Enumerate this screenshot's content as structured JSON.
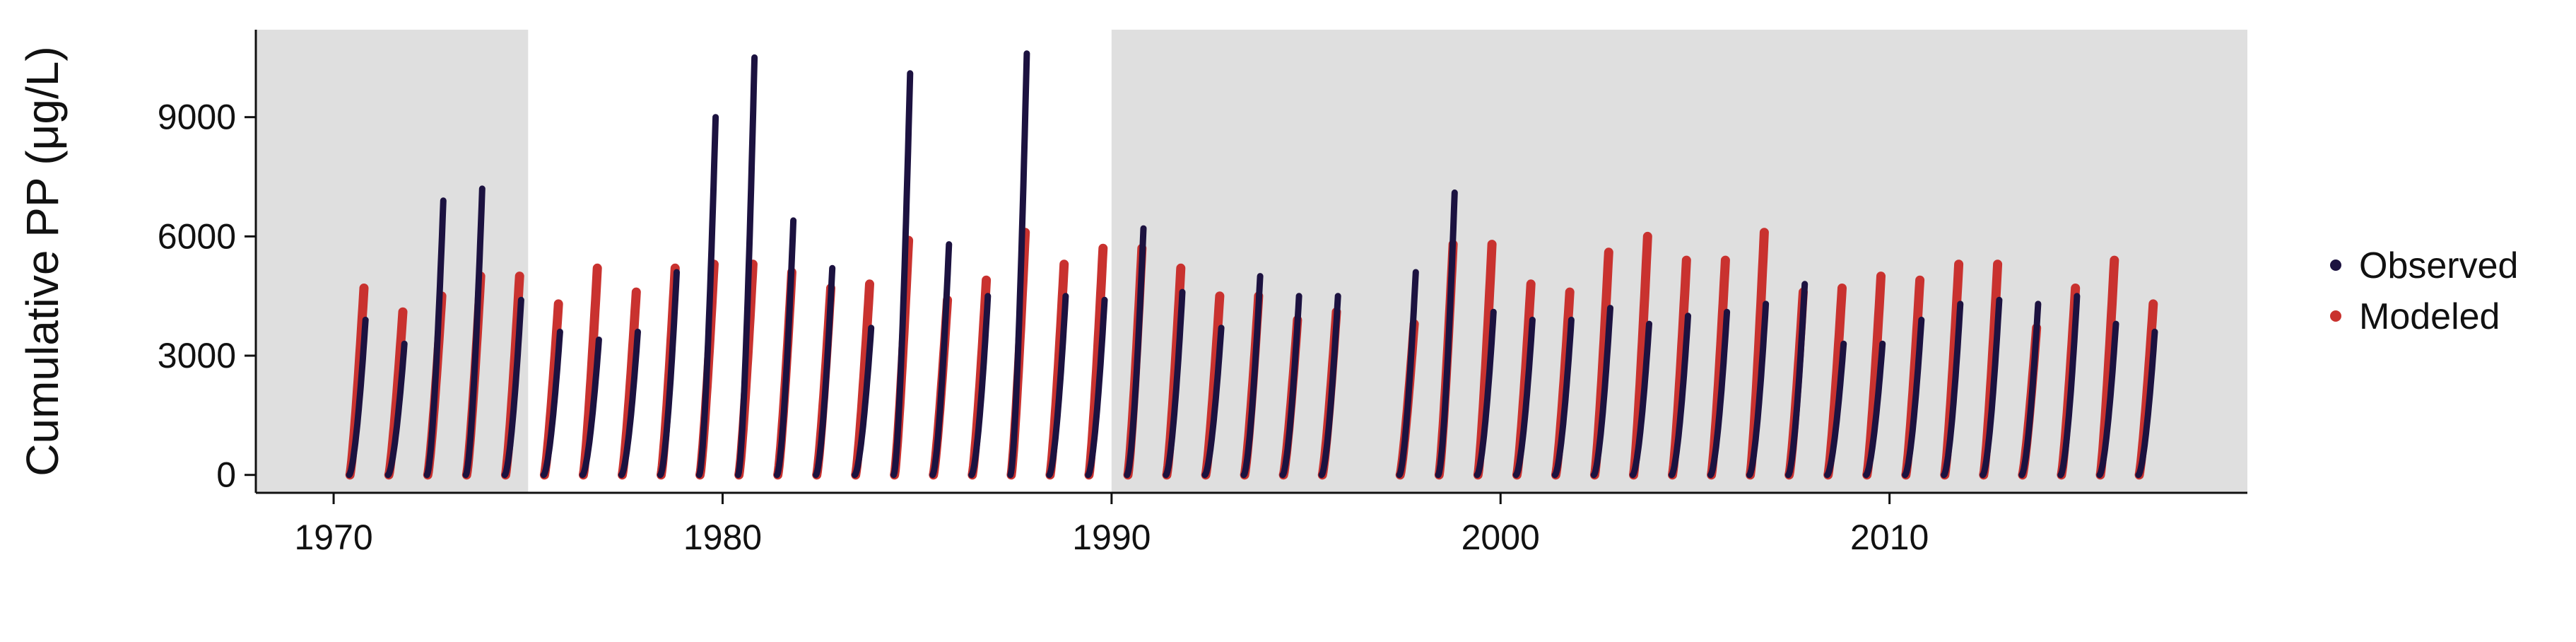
{
  "chart_data": {
    "type": "line",
    "title": "",
    "xlabel": "",
    "ylabel": "Cumulative PP (μg/L)",
    "xlim": [
      1968.0,
      2019.2
    ],
    "ylim": [
      -450,
      11200
    ],
    "x_ticks": [
      1970,
      1980,
      1990,
      2000,
      2010
    ],
    "x_tick_labels": [
      "1970",
      "1980",
      "1990",
      "2000",
      "2010"
    ],
    "y_ticks": [
      0,
      3000,
      6000,
      9000
    ],
    "y_tick_labels": [
      "0",
      "3000",
      "6000",
      "9000"
    ],
    "grid": false,
    "shaded_periods": [
      [
        1968.0,
        1975.0
      ],
      [
        1990.0,
        2019.2
      ]
    ],
    "legend": {
      "position": "right",
      "entries": [
        "Observed",
        "Modeled"
      ]
    },
    "series": [
      {
        "name": "Observed",
        "color": "#1c1240",
        "seasons": [
          [
            1970.4,
            3900
          ],
          [
            1971.4,
            3300
          ],
          [
            1972.4,
            6900
          ],
          [
            1973.4,
            7200
          ],
          [
            1974.4,
            4400
          ],
          [
            1975.4,
            3600
          ],
          [
            1976.4,
            3400
          ],
          [
            1977.4,
            3600
          ],
          [
            1978.4,
            5100
          ],
          [
            1979.4,
            9000
          ],
          [
            1980.4,
            10500
          ],
          [
            1981.4,
            6400
          ],
          [
            1982.4,
            5200
          ],
          [
            1983.4,
            3700
          ],
          [
            1984.4,
            10100
          ],
          [
            1985.4,
            5800
          ],
          [
            1986.4,
            4500
          ],
          [
            1987.4,
            10600
          ],
          [
            1988.4,
            4500
          ],
          [
            1989.4,
            4400
          ],
          [
            1990.4,
            6200
          ],
          [
            1991.4,
            4600
          ],
          [
            1992.4,
            3700
          ],
          [
            1993.4,
            5000
          ],
          [
            1994.4,
            4500
          ],
          [
            1995.4,
            4500
          ],
          [
            1997.4,
            5100
          ],
          [
            1998.4,
            7100
          ],
          [
            1999.4,
            4100
          ],
          [
            2000.4,
            3900
          ],
          [
            2001.4,
            3900
          ],
          [
            2002.4,
            4200
          ],
          [
            2003.4,
            3800
          ],
          [
            2004.4,
            4000
          ],
          [
            2005.4,
            4100
          ],
          [
            2006.4,
            4300
          ],
          [
            2007.4,
            4800
          ],
          [
            2008.4,
            3300
          ],
          [
            2009.4,
            3300
          ],
          [
            2010.4,
            3900
          ],
          [
            2011.4,
            4300
          ],
          [
            2012.4,
            4400
          ],
          [
            2013.4,
            4300
          ],
          [
            2014.4,
            4500
          ],
          [
            2015.4,
            3800
          ],
          [
            2016.4,
            3600
          ]
        ]
      },
      {
        "name": "Modeled",
        "color": "#c9322f",
        "seasons": [
          [
            1970.4,
            4700
          ],
          [
            1971.4,
            4100
          ],
          [
            1972.4,
            4500
          ],
          [
            1973.4,
            5000
          ],
          [
            1974.4,
            5000
          ],
          [
            1975.4,
            4300
          ],
          [
            1976.4,
            5200
          ],
          [
            1977.4,
            4600
          ],
          [
            1978.4,
            5200
          ],
          [
            1979.4,
            5300
          ],
          [
            1980.4,
            5300
          ],
          [
            1981.4,
            5100
          ],
          [
            1982.4,
            4700
          ],
          [
            1983.4,
            4800
          ],
          [
            1984.4,
            5900
          ],
          [
            1985.4,
            4400
          ],
          [
            1986.4,
            4900
          ],
          [
            1987.4,
            6100
          ],
          [
            1988.4,
            5300
          ],
          [
            1989.4,
            5700
          ],
          [
            1990.4,
            5700
          ],
          [
            1991.4,
            5200
          ],
          [
            1992.4,
            4500
          ],
          [
            1993.4,
            4500
          ],
          [
            1994.4,
            3900
          ],
          [
            1995.4,
            4100
          ],
          [
            1997.4,
            3800
          ],
          [
            1998.4,
            5800
          ],
          [
            1999.4,
            5800
          ],
          [
            2000.4,
            4800
          ],
          [
            2001.4,
            4600
          ],
          [
            2002.4,
            5600
          ],
          [
            2003.4,
            6000
          ],
          [
            2004.4,
            5400
          ],
          [
            2005.4,
            5400
          ],
          [
            2006.4,
            6100
          ],
          [
            2007.4,
            4600
          ],
          [
            2008.4,
            4700
          ],
          [
            2009.4,
            5000
          ],
          [
            2010.4,
            4900
          ],
          [
            2011.4,
            5300
          ],
          [
            2012.4,
            5300
          ],
          [
            2013.4,
            3700
          ],
          [
            2014.4,
            4700
          ],
          [
            2015.4,
            5400
          ],
          [
            2016.4,
            4300
          ]
        ]
      }
    ]
  }
}
